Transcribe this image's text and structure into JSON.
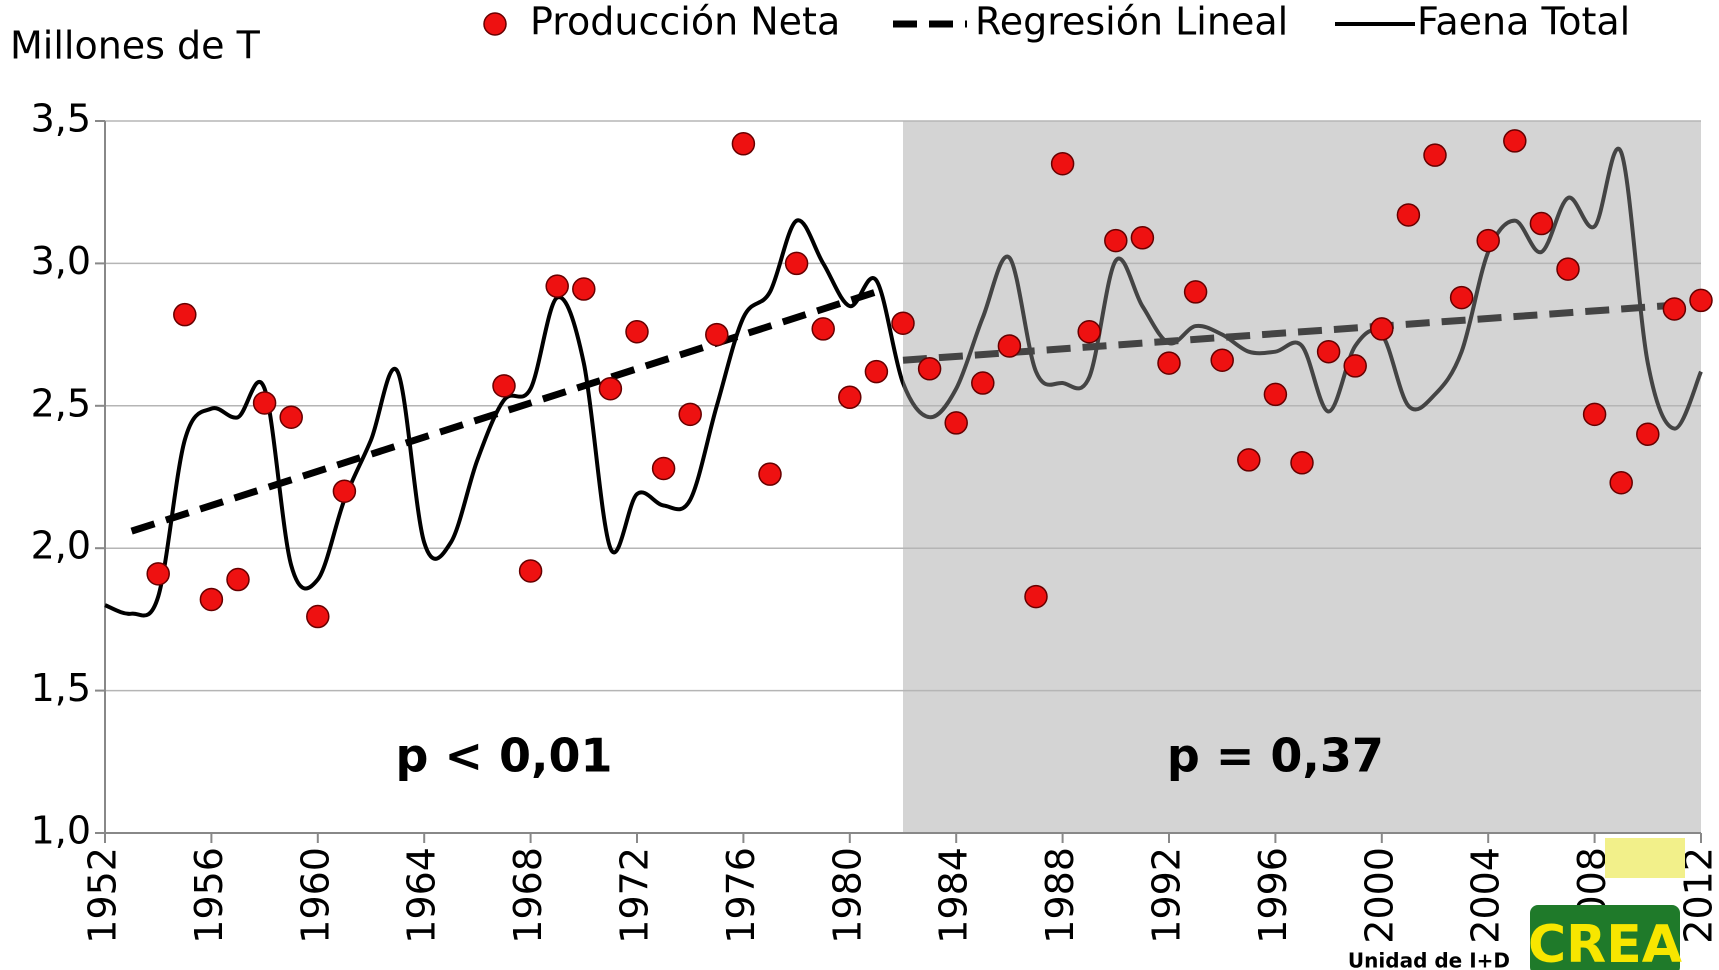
{
  "chart_data": {
    "type": "line",
    "y_label": "Millones de T",
    "xlim": [
      1952,
      2012
    ],
    "xticks": [
      1952,
      1956,
      1960,
      1964,
      1968,
      1972,
      1976,
      1980,
      1984,
      1988,
      1992,
      1996,
      2000,
      2004,
      2008,
      2012
    ],
    "ylim": [
      1.0,
      3.5
    ],
    "yticks": [
      {
        "value": 1.0,
        "label": "1,0"
      },
      {
        "value": 1.5,
        "label": "1,5"
      },
      {
        "value": 2.0,
        "label": "2,0"
      },
      {
        "value": 2.5,
        "label": "2,5"
      },
      {
        "value": 3.0,
        "label": "3,0"
      },
      {
        "value": 3.5,
        "label": "3,5"
      }
    ],
    "grid": true,
    "shaded_from": 1982,
    "shade_color": "#d4d4d4",
    "series": [
      {
        "name": "Producción Neta",
        "type": "scatter",
        "color": "#ee1111",
        "x": [
          1954,
          1955,
          1956,
          1957,
          1958,
          1959,
          1960,
          1961,
          1967,
          1968,
          1969,
          1970,
          1971,
          1972,
          1973,
          1974,
          1975,
          1976,
          1977,
          1978,
          1979,
          1980,
          1981,
          1982,
          1983,
          1984,
          1985,
          1986,
          1987,
          1988,
          1989,
          1990,
          1991,
          1992,
          1993,
          1994,
          1995,
          1996,
          1997,
          1998,
          1999,
          2000,
          2001,
          2002,
          2003,
          2004,
          2005,
          2006,
          2007,
          2008,
          2009,
          2010,
          2011,
          2012
        ],
        "values": [
          1.91,
          2.82,
          1.82,
          1.89,
          2.51,
          2.46,
          1.76,
          2.2,
          2.57,
          1.92,
          2.92,
          2.91,
          2.56,
          2.76,
          2.28,
          2.47,
          2.75,
          3.42,
          2.26,
          3.0,
          2.77,
          2.53,
          2.62,
          2.79,
          2.63,
          2.44,
          2.58,
          2.71,
          1.83,
          3.35,
          2.76,
          3.08,
          3.09,
          2.65,
          2.9,
          2.66,
          2.31,
          2.54,
          2.3,
          2.69,
          2.64,
          2.77,
          3.17,
          3.38,
          2.88,
          3.08,
          3.43,
          3.14,
          2.98,
          2.47,
          2.23,
          2.4,
          2.84,
          2.87
        ]
      },
      {
        "name": "Regresión Lineal",
        "type": "regression",
        "segments": [
          {
            "color": "#000000",
            "x": [
              1953,
              1981
            ],
            "values": [
              2.06,
              2.9
            ]
          },
          {
            "color": "#444444",
            "x": [
              1982,
              2012
            ],
            "values": [
              2.66,
              2.86
            ]
          }
        ]
      },
      {
        "name": "Faena Total",
        "type": "line",
        "color": "#000000",
        "color_shaded": "#444444",
        "x": [
          1952,
          1953,
          1954,
          1955,
          1956,
          1957,
          1958,
          1959,
          1960,
          1961,
          1962,
          1963,
          1964,
          1965,
          1966,
          1967,
          1968,
          1969,
          1970,
          1971,
          1972,
          1973,
          1974,
          1975,
          1976,
          1977,
          1978,
          1979,
          1980,
          1981,
          1982,
          1983,
          1984,
          1985,
          1986,
          1987,
          1988,
          1989,
          1990,
          1991,
          1992,
          1993,
          1994,
          1995,
          1996,
          1997,
          1998,
          1999,
          2000,
          2001,
          2002,
          2003,
          2004,
          2005,
          2006,
          2007,
          2008,
          2009,
          2010,
          2011,
          2012
        ],
        "values": [
          1.8,
          1.77,
          1.83,
          2.38,
          2.49,
          2.46,
          2.56,
          1.94,
          1.89,
          2.17,
          2.38,
          2.62,
          2.02,
          2.02,
          2.31,
          2.52,
          2.56,
          2.88,
          2.65,
          2.0,
          2.19,
          2.15,
          2.17,
          2.5,
          2.81,
          2.9,
          3.15,
          3.0,
          2.85,
          2.94,
          2.58,
          2.46,
          2.56,
          2.81,
          3.02,
          2.62,
          2.58,
          2.6,
          3.01,
          2.85,
          2.72,
          2.78,
          2.75,
          2.69,
          2.69,
          2.71,
          2.48,
          2.71,
          2.75,
          2.5,
          2.54,
          2.69,
          3.04,
          3.15,
          3.04,
          3.23,
          3.13,
          3.39,
          2.65,
          2.42,
          2.62
        ]
      }
    ],
    "annotations": [
      {
        "text": "p < 0,01",
        "x": 1967,
        "y": 1.26
      },
      {
        "text": "p = 0,37",
        "x": 1996,
        "y": 1.26
      }
    ],
    "logo": {
      "text": "CREA",
      "caption": "Unidad de I+D"
    }
  }
}
